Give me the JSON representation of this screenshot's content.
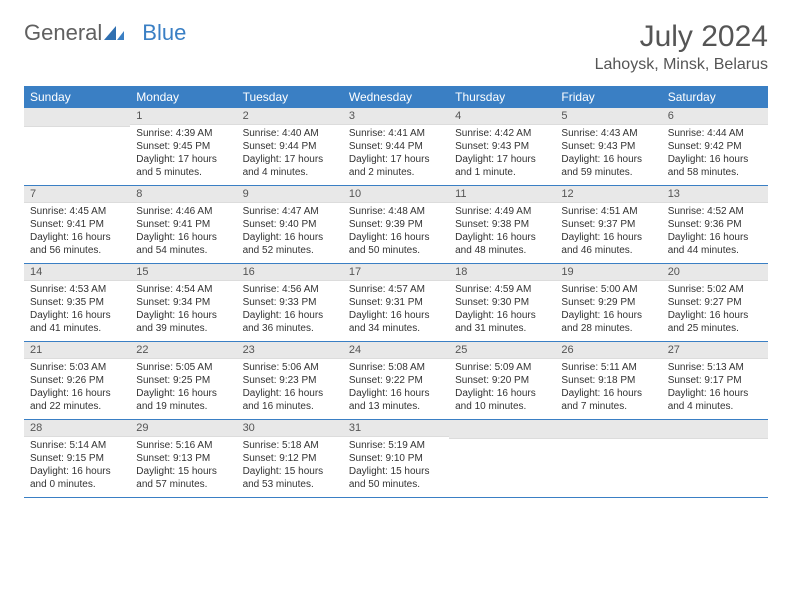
{
  "brand": {
    "part1": "General",
    "part2": "Blue"
  },
  "title": "July 2024",
  "location": "Lahoysk, Minsk, Belarus",
  "colors": {
    "header_bg": "#3a7fc4",
    "header_text": "#ffffff",
    "daynum_bg": "#e8e8e8",
    "row_divider": "#3a7fc4",
    "text": "#333333",
    "muted": "#555555"
  },
  "typography": {
    "title_fontsize": 30,
    "location_fontsize": 16,
    "header_fontsize": 12,
    "daynum_fontsize": 11,
    "cell_fontsize": 10
  },
  "weekdays": [
    "Sunday",
    "Monday",
    "Tuesday",
    "Wednesday",
    "Thursday",
    "Friday",
    "Saturday"
  ],
  "weeks": [
    [
      {
        "day": "",
        "sunrise": "",
        "sunset": "",
        "daylight": ""
      },
      {
        "day": "1",
        "sunrise": "Sunrise: 4:39 AM",
        "sunset": "Sunset: 9:45 PM",
        "daylight": "Daylight: 17 hours and 5 minutes."
      },
      {
        "day": "2",
        "sunrise": "Sunrise: 4:40 AM",
        "sunset": "Sunset: 9:44 PM",
        "daylight": "Daylight: 17 hours and 4 minutes."
      },
      {
        "day": "3",
        "sunrise": "Sunrise: 4:41 AM",
        "sunset": "Sunset: 9:44 PM",
        "daylight": "Daylight: 17 hours and 2 minutes."
      },
      {
        "day": "4",
        "sunrise": "Sunrise: 4:42 AM",
        "sunset": "Sunset: 9:43 PM",
        "daylight": "Daylight: 17 hours and 1 minute."
      },
      {
        "day": "5",
        "sunrise": "Sunrise: 4:43 AM",
        "sunset": "Sunset: 9:43 PM",
        "daylight": "Daylight: 16 hours and 59 minutes."
      },
      {
        "day": "6",
        "sunrise": "Sunrise: 4:44 AM",
        "sunset": "Sunset: 9:42 PM",
        "daylight": "Daylight: 16 hours and 58 minutes."
      }
    ],
    [
      {
        "day": "7",
        "sunrise": "Sunrise: 4:45 AM",
        "sunset": "Sunset: 9:41 PM",
        "daylight": "Daylight: 16 hours and 56 minutes."
      },
      {
        "day": "8",
        "sunrise": "Sunrise: 4:46 AM",
        "sunset": "Sunset: 9:41 PM",
        "daylight": "Daylight: 16 hours and 54 minutes."
      },
      {
        "day": "9",
        "sunrise": "Sunrise: 4:47 AM",
        "sunset": "Sunset: 9:40 PM",
        "daylight": "Daylight: 16 hours and 52 minutes."
      },
      {
        "day": "10",
        "sunrise": "Sunrise: 4:48 AM",
        "sunset": "Sunset: 9:39 PM",
        "daylight": "Daylight: 16 hours and 50 minutes."
      },
      {
        "day": "11",
        "sunrise": "Sunrise: 4:49 AM",
        "sunset": "Sunset: 9:38 PM",
        "daylight": "Daylight: 16 hours and 48 minutes."
      },
      {
        "day": "12",
        "sunrise": "Sunrise: 4:51 AM",
        "sunset": "Sunset: 9:37 PM",
        "daylight": "Daylight: 16 hours and 46 minutes."
      },
      {
        "day": "13",
        "sunrise": "Sunrise: 4:52 AM",
        "sunset": "Sunset: 9:36 PM",
        "daylight": "Daylight: 16 hours and 44 minutes."
      }
    ],
    [
      {
        "day": "14",
        "sunrise": "Sunrise: 4:53 AM",
        "sunset": "Sunset: 9:35 PM",
        "daylight": "Daylight: 16 hours and 41 minutes."
      },
      {
        "day": "15",
        "sunrise": "Sunrise: 4:54 AM",
        "sunset": "Sunset: 9:34 PM",
        "daylight": "Daylight: 16 hours and 39 minutes."
      },
      {
        "day": "16",
        "sunrise": "Sunrise: 4:56 AM",
        "sunset": "Sunset: 9:33 PM",
        "daylight": "Daylight: 16 hours and 36 minutes."
      },
      {
        "day": "17",
        "sunrise": "Sunrise: 4:57 AM",
        "sunset": "Sunset: 9:31 PM",
        "daylight": "Daylight: 16 hours and 34 minutes."
      },
      {
        "day": "18",
        "sunrise": "Sunrise: 4:59 AM",
        "sunset": "Sunset: 9:30 PM",
        "daylight": "Daylight: 16 hours and 31 minutes."
      },
      {
        "day": "19",
        "sunrise": "Sunrise: 5:00 AM",
        "sunset": "Sunset: 9:29 PM",
        "daylight": "Daylight: 16 hours and 28 minutes."
      },
      {
        "day": "20",
        "sunrise": "Sunrise: 5:02 AM",
        "sunset": "Sunset: 9:27 PM",
        "daylight": "Daylight: 16 hours and 25 minutes."
      }
    ],
    [
      {
        "day": "21",
        "sunrise": "Sunrise: 5:03 AM",
        "sunset": "Sunset: 9:26 PM",
        "daylight": "Daylight: 16 hours and 22 minutes."
      },
      {
        "day": "22",
        "sunrise": "Sunrise: 5:05 AM",
        "sunset": "Sunset: 9:25 PM",
        "daylight": "Daylight: 16 hours and 19 minutes."
      },
      {
        "day": "23",
        "sunrise": "Sunrise: 5:06 AM",
        "sunset": "Sunset: 9:23 PM",
        "daylight": "Daylight: 16 hours and 16 minutes."
      },
      {
        "day": "24",
        "sunrise": "Sunrise: 5:08 AM",
        "sunset": "Sunset: 9:22 PM",
        "daylight": "Daylight: 16 hours and 13 minutes."
      },
      {
        "day": "25",
        "sunrise": "Sunrise: 5:09 AM",
        "sunset": "Sunset: 9:20 PM",
        "daylight": "Daylight: 16 hours and 10 minutes."
      },
      {
        "day": "26",
        "sunrise": "Sunrise: 5:11 AM",
        "sunset": "Sunset: 9:18 PM",
        "daylight": "Daylight: 16 hours and 7 minutes."
      },
      {
        "day": "27",
        "sunrise": "Sunrise: 5:13 AM",
        "sunset": "Sunset: 9:17 PM",
        "daylight": "Daylight: 16 hours and 4 minutes."
      }
    ],
    [
      {
        "day": "28",
        "sunrise": "Sunrise: 5:14 AM",
        "sunset": "Sunset: 9:15 PM",
        "daylight": "Daylight: 16 hours and 0 minutes."
      },
      {
        "day": "29",
        "sunrise": "Sunrise: 5:16 AM",
        "sunset": "Sunset: 9:13 PM",
        "daylight": "Daylight: 15 hours and 57 minutes."
      },
      {
        "day": "30",
        "sunrise": "Sunrise: 5:18 AM",
        "sunset": "Sunset: 9:12 PM",
        "daylight": "Daylight: 15 hours and 53 minutes."
      },
      {
        "day": "31",
        "sunrise": "Sunrise: 5:19 AM",
        "sunset": "Sunset: 9:10 PM",
        "daylight": "Daylight: 15 hours and 50 minutes."
      },
      {
        "day": "",
        "sunrise": "",
        "sunset": "",
        "daylight": ""
      },
      {
        "day": "",
        "sunrise": "",
        "sunset": "",
        "daylight": ""
      },
      {
        "day": "",
        "sunrise": "",
        "sunset": "",
        "daylight": ""
      }
    ]
  ]
}
